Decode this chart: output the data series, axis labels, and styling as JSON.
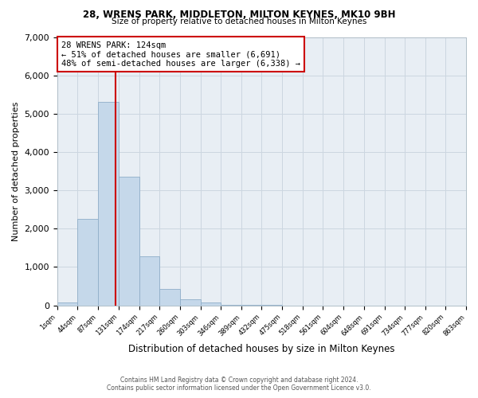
{
  "title1": "28, WRENS PARK, MIDDLETON, MILTON KEYNES, MK10 9BH",
  "title2": "Size of property relative to detached houses in Milton Keynes",
  "xlabel": "Distribution of detached houses by size in Milton Keynes",
  "ylabel": "Number of detached properties",
  "footer1": "Contains HM Land Registry data © Crown copyright and database right 2024.",
  "footer2": "Contains public sector information licensed under the Open Government Licence v3.0.",
  "bin_edges": [
    1,
    44,
    87,
    131,
    174,
    217,
    260,
    303,
    346,
    389,
    432,
    475,
    518,
    561,
    604,
    648,
    691,
    734,
    777,
    820,
    863
  ],
  "bin_labels": [
    "1sqm",
    "44sqm",
    "87sqm",
    "131sqm",
    "174sqm",
    "217sqm",
    "260sqm",
    "303sqm",
    "346sqm",
    "389sqm",
    "432sqm",
    "475sqm",
    "518sqm",
    "561sqm",
    "604sqm",
    "648sqm",
    "691sqm",
    "734sqm",
    "777sqm",
    "820sqm",
    "863sqm"
  ],
  "bar_values": [
    70,
    2250,
    5300,
    3350,
    1280,
    420,
    160,
    70,
    20,
    5,
    2,
    0,
    0,
    0,
    0,
    0,
    0,
    0,
    0,
    0
  ],
  "bar_color": "#c5d8ea",
  "bar_edge_color": "#8faec8",
  "grid_color": "#ccd6e0",
  "bg_color": "#e8eef4",
  "property_sqm": 124,
  "red_line_color": "#cc0000",
  "annotation_text": "28 WRENS PARK: 124sqm\n← 51% of detached houses are smaller (6,691)\n48% of semi-detached houses are larger (6,338) →",
  "annotation_box_color": "white",
  "annotation_box_edge": "#cc0000",
  "ylim": [
    0,
    7000
  ],
  "yticks": [
    0,
    1000,
    2000,
    3000,
    4000,
    5000,
    6000,
    7000
  ]
}
